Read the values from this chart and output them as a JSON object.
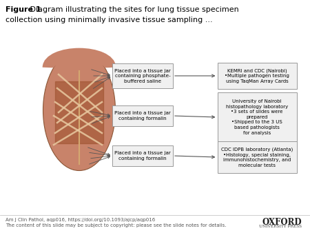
{
  "title_bold": "Figure 1",
  "title_normal": " Diagram illustrating the sites for lung tissue specimen\ncollection using minimally invasive tissue sampling ...",
  "title_fontsize": 8.0,
  "bg_color": "#ffffff",
  "box_facecolor": "#f0f0f0",
  "box_edgecolor": "#999999",
  "arrow_color": "#555555",
  "box1_label": "Placed into a tissue jar\ncontaining phosphate-\nbuffered saline",
  "box2_label": "Placed into a tissue jar\ncontaining formalin",
  "box3_label": "Placed into a tissue jar\ncontaining formalin",
  "right1_label": "KEMRI and CDC (Nairobi)\n•Multiple pathogen testing\nusing TaqMan Array Cards",
  "right2_label": "University of Nairobi\nhistopathology laboratory\n•3 sets of slides were\nprepared\n•Shipped to the 3 US\nbased pathologists\nfor analysis",
  "right3_label": "CDC IDPB laboratory (Atlanta)\n•Histology, special staining,\nimmunohistochemistry, and\nmolecular tests",
  "footer_left1": "Am J Clin Pathol, aqp016, https://doi.org/10.1093/ajcp/aqp016",
  "footer_left2": "The content of this slide may be subject to copyright: please see the slide notes for details.",
  "footer_right1": "OXFORD",
  "footer_right2": "UNIVERSITY PRESS",
  "footer_fontsize": 5.0,
  "oxford_fontsize": 8.5,
  "text_fontsize": 5.5,
  "skin_color": "#c8836a",
  "rib_color": "#e8c9a0",
  "dark_color": "#9b4e2a"
}
